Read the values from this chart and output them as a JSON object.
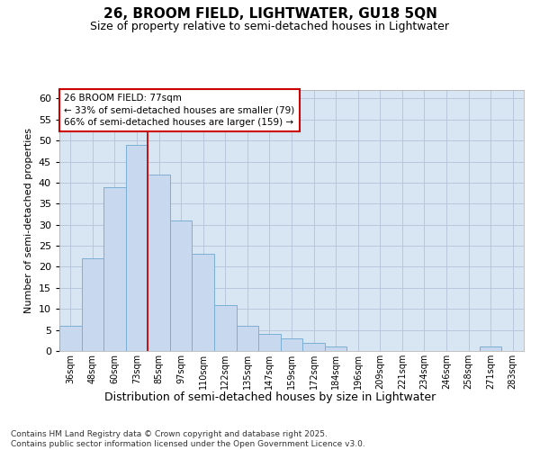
{
  "title": "26, BROOM FIELD, LIGHTWATER, GU18 5QN",
  "subtitle": "Size of property relative to semi-detached houses in Lightwater",
  "xlabel": "Distribution of semi-detached houses by size in Lightwater",
  "ylabel": "Number of semi-detached properties",
  "categories": [
    "36sqm",
    "48sqm",
    "60sqm",
    "73sqm",
    "85sqm",
    "97sqm",
    "110sqm",
    "122sqm",
    "135sqm",
    "147sqm",
    "159sqm",
    "172sqm",
    "184sqm",
    "196sqm",
    "209sqm",
    "221sqm",
    "234sqm",
    "246sqm",
    "258sqm",
    "271sqm",
    "283sqm"
  ],
  "values": [
    6,
    22,
    39,
    49,
    42,
    31,
    23,
    11,
    6,
    4,
    3,
    2,
    1,
    0,
    0,
    0,
    0,
    0,
    0,
    1,
    0
  ],
  "bar_color": "#c8d8ee",
  "bar_edge_color": "#7bafd4",
  "grid_color": "#b8c8dc",
  "background_color": "#d8e5f3",
  "vline_x": 3.5,
  "vline_color": "#cc0000",
  "annotation_title": "26 BROOM FIELD: 77sqm",
  "annotation_line1": "← 33% of semi-detached houses are smaller (79)",
  "annotation_line2": "66% of semi-detached houses are larger (159) →",
  "annotation_box_color": "#ffffff",
  "annotation_box_edge_color": "#cc0000",
  "ylim": [
    0,
    62
  ],
  "yticks": [
    0,
    5,
    10,
    15,
    20,
    25,
    30,
    35,
    40,
    45,
    50,
    55,
    60
  ],
  "footer_line1": "Contains HM Land Registry data © Crown copyright and database right 2025.",
  "footer_line2": "Contains public sector information licensed under the Open Government Licence v3.0."
}
